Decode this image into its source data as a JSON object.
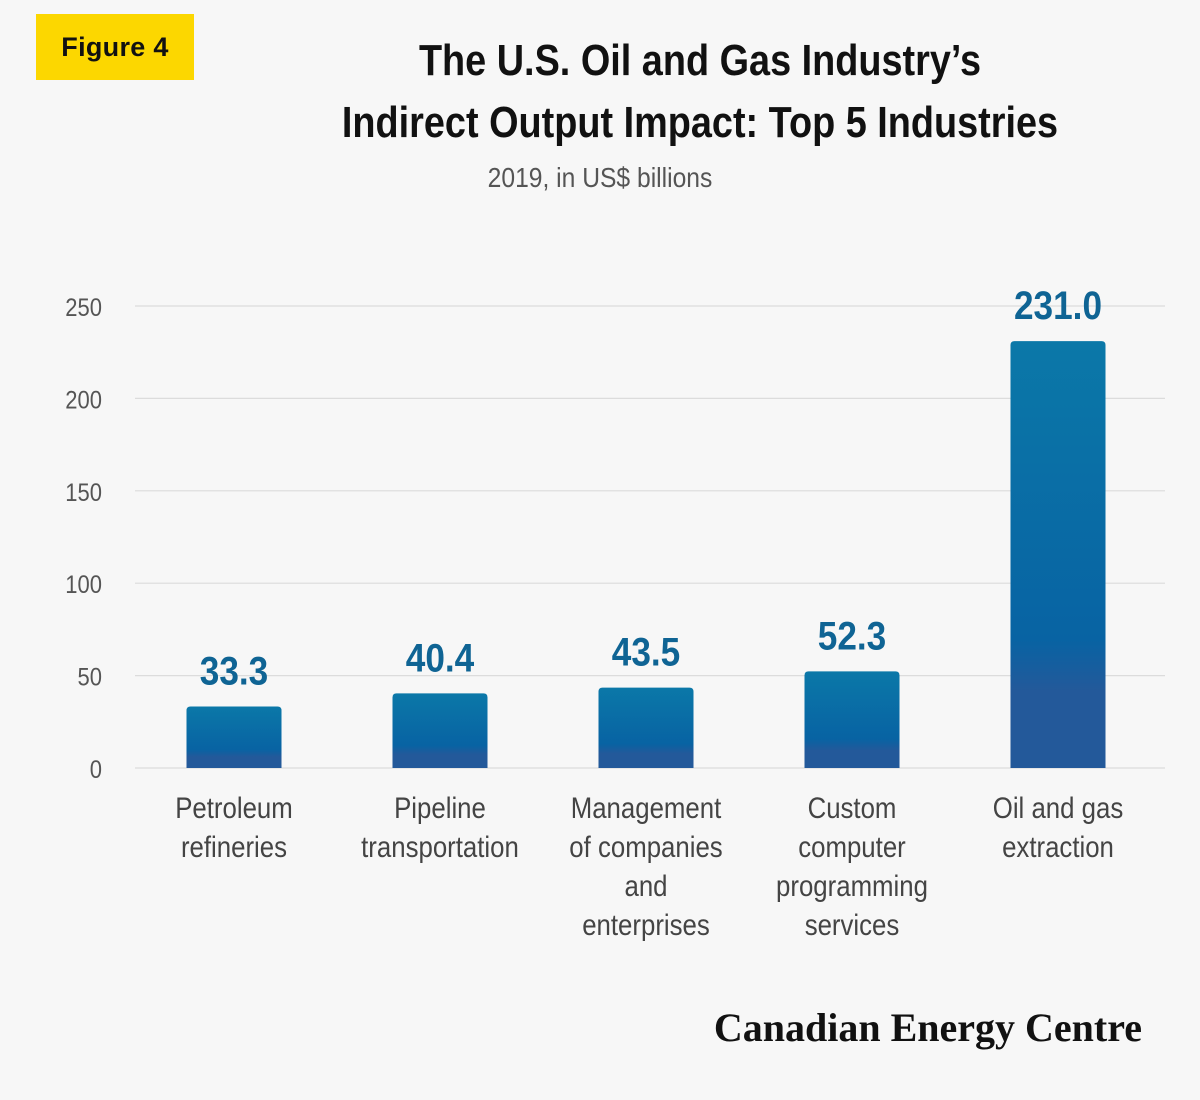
{
  "badge": "Figure 4",
  "chart_data": {
    "type": "bar",
    "title_lines": [
      "The U.S. Oil and Gas Industry’s",
      "Indirect Output Impact: Top 5 Industries"
    ],
    "subtitle": "2019, in US$ billions",
    "categories": [
      [
        "Petroleum",
        "refineries"
      ],
      [
        "Pipeline",
        "transportation"
      ],
      [
        "Management",
        "of companies",
        "and",
        "enterprises"
      ],
      [
        "Custom",
        "computer",
        "programming",
        "services"
      ],
      [
        "Oil and gas",
        "extraction"
      ]
    ],
    "values": [
      33.3,
      40.4,
      43.5,
      52.3,
      231.0
    ],
    "value_labels": [
      "33.3",
      "40.4",
      "43.5",
      "52.3",
      "231.0"
    ],
    "yticks": [
      "0",
      "50",
      "100",
      "150",
      "200",
      "250"
    ],
    "ylim": [
      0,
      250
    ],
    "grid": true,
    "colors": {
      "bar_top": "#0b78a8",
      "bar_mid": "#0863a3",
      "bar_base": "#23599a",
      "value_label": "#0f6494",
      "grid": "#dcdcdc",
      "axis_text": "#555555"
    }
  },
  "brand": "Canadian Energy Centre"
}
